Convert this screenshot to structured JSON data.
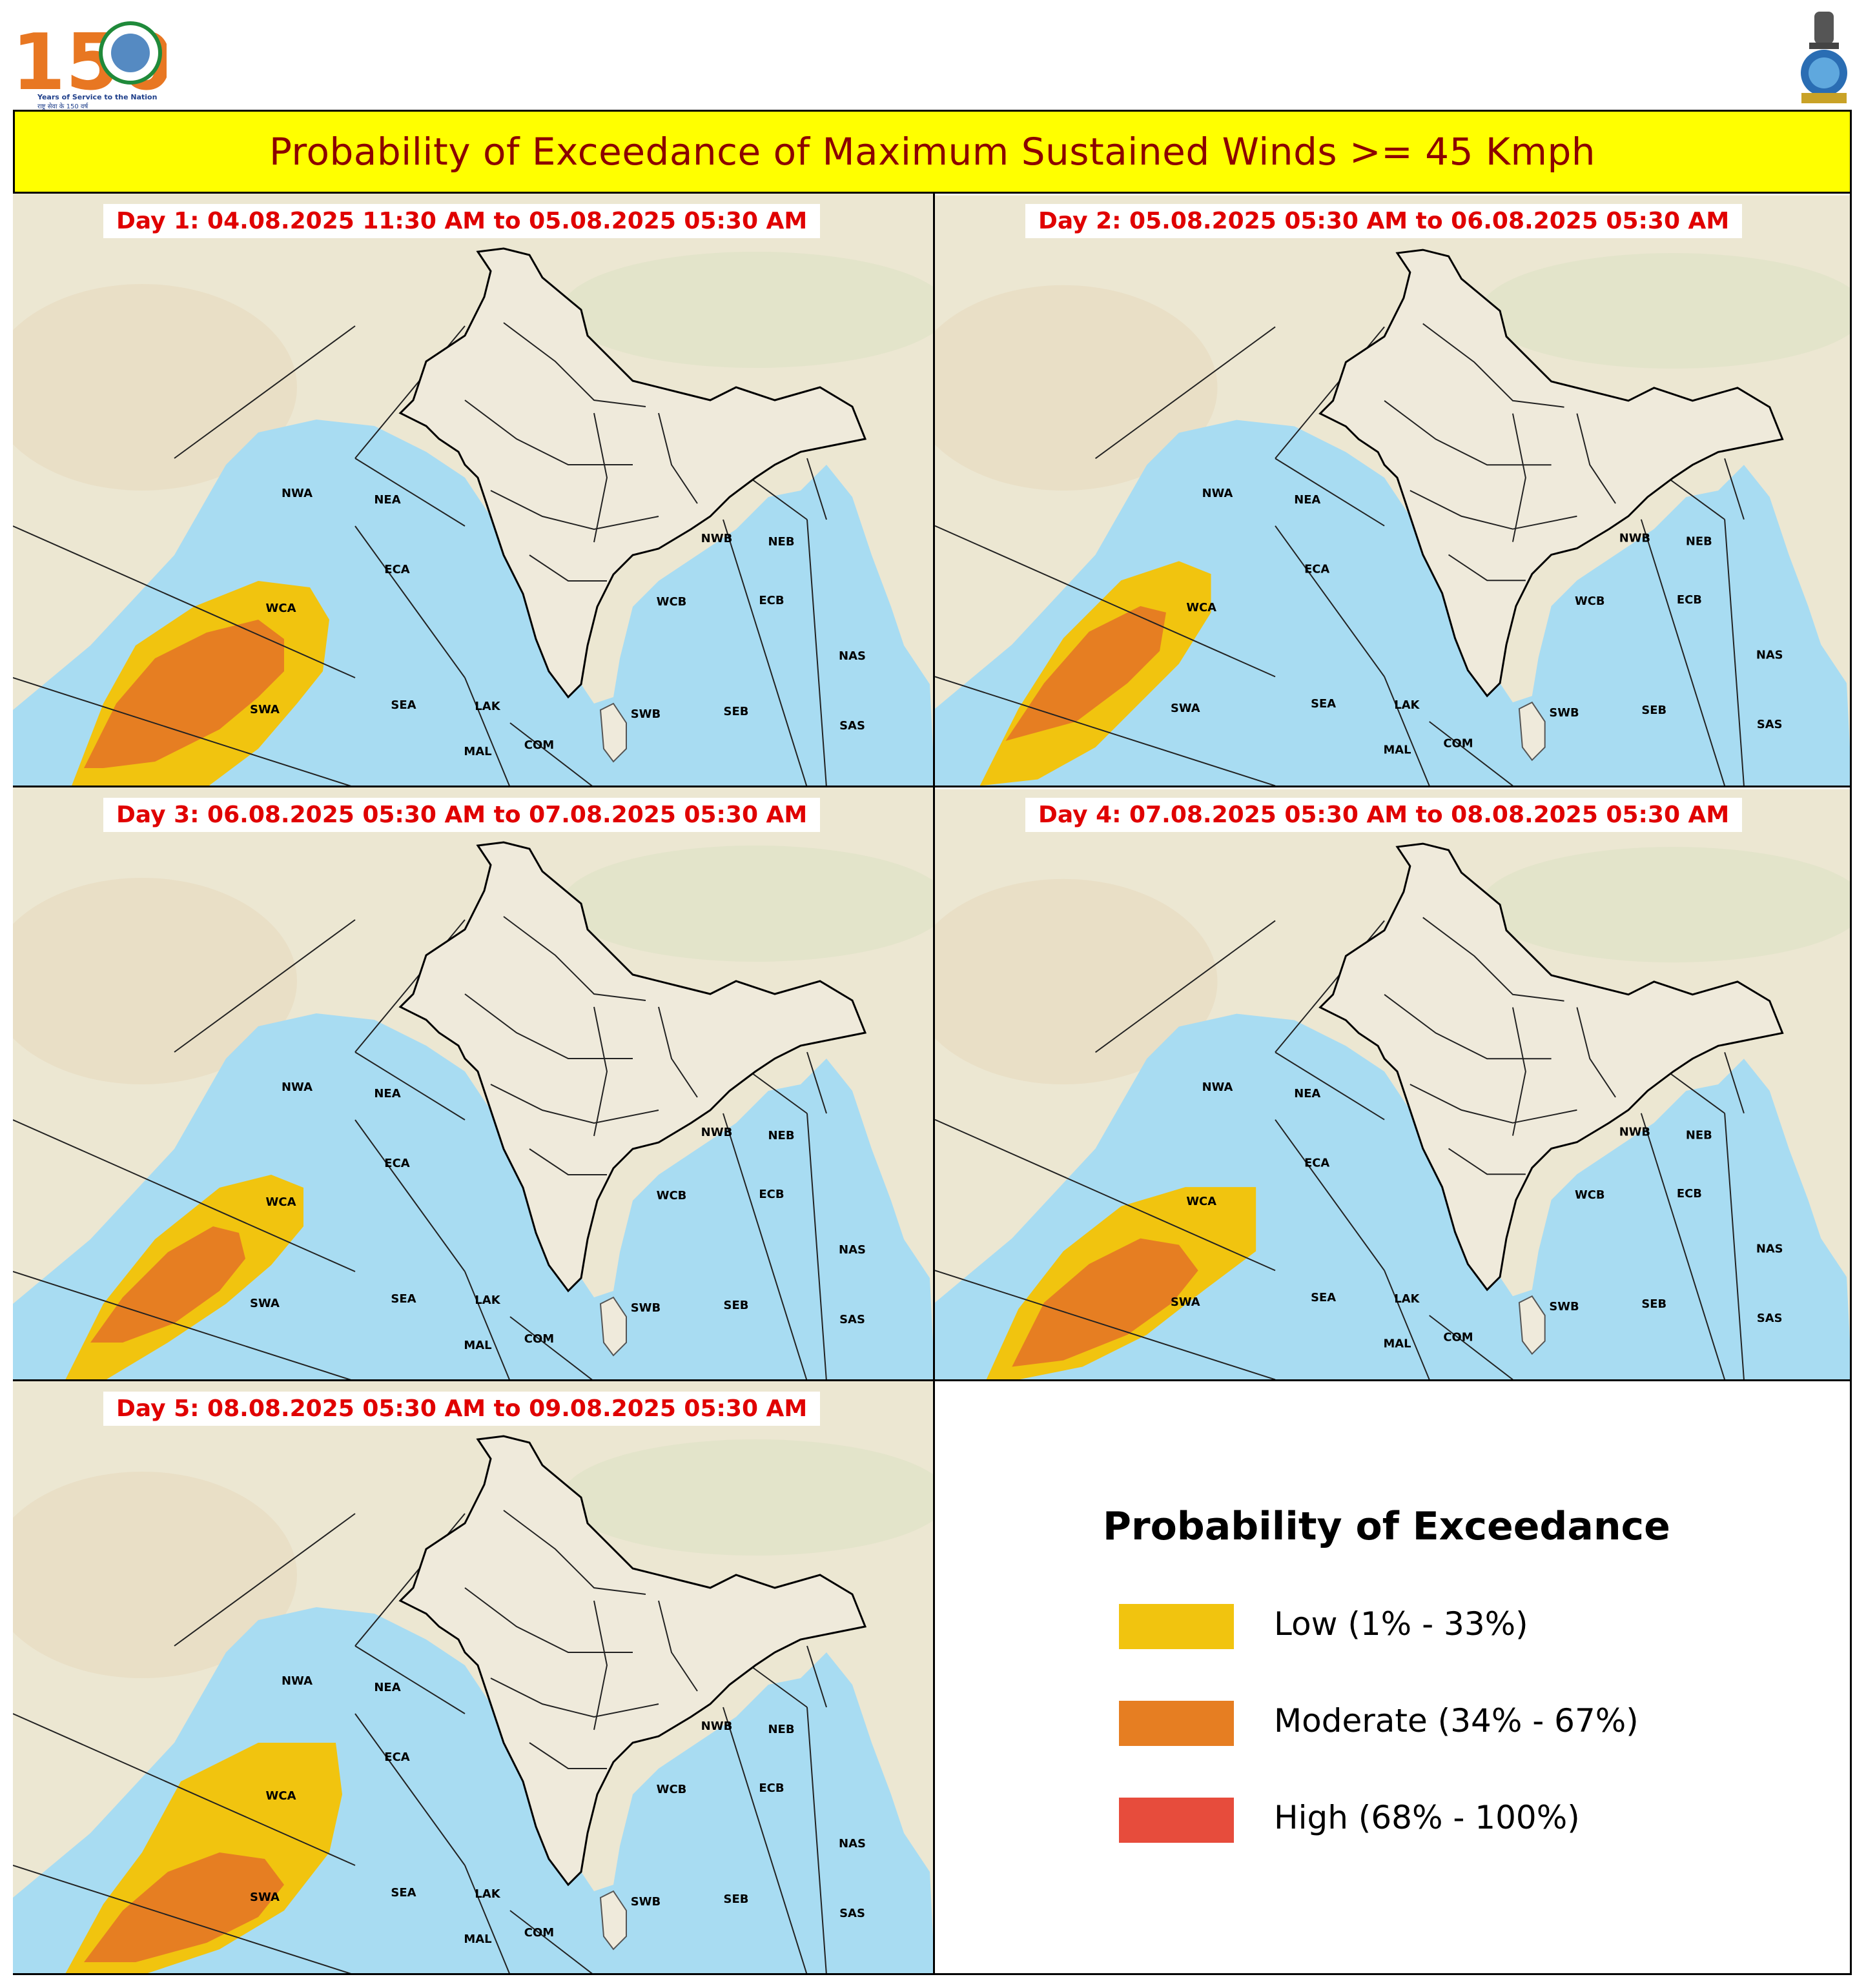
{
  "header": {
    "logo_number": "150",
    "logo_caption": "Years of Service to the Nation",
    "logo_caption_hindi": "राष्ट्र सेवा के 150 वर्ष",
    "title": "Probability of Exceedance of Maximum Sustained Winds >= 45 Kmph"
  },
  "colors": {
    "low": "#f1c40f",
    "moderate": "#e67e22",
    "high": "#e74c3c",
    "sea": "#a8dcf2",
    "land": "#ece7d2",
    "banner": "#ffff00",
    "title_text": "#8b0000",
    "day_label": "#e00000"
  },
  "map_regions": [
    "NWA",
    "NEA",
    "ECA",
    "WCA",
    "SWA",
    "SEA",
    "LAK",
    "MAL",
    "COM",
    "NWB",
    "NEB",
    "WCB",
    "ECB",
    "SWB",
    "SEB",
    "NAS",
    "SAS"
  ],
  "panels": [
    {
      "label": "Day 1: 04.08.2025 11:30 AM to 05.08.2025 05:30 AM",
      "low_level": "Low",
      "moderate_level": "Moderate"
    },
    {
      "label": "Day 2: 05.08.2025 05:30 AM to 06.08.2025 05:30 AM",
      "low_level": "Low",
      "moderate_level": "Moderate"
    },
    {
      "label": "Day 3: 06.08.2025 05:30 AM to 07.08.2025 05:30 AM",
      "low_level": "Low",
      "moderate_level": "Moderate"
    },
    {
      "label": "Day 4: 07.08.2025 05:30 AM to 08.08.2025 05:30 AM",
      "low_level": "Low",
      "moderate_level": "Moderate"
    },
    {
      "label": "Day 5: 08.08.2025 05:30 AM to 09.08.2025 05:30 AM",
      "low_level": "Low",
      "moderate_level": "Moderate"
    }
  ],
  "legend": {
    "title": "Probability of Exceedance",
    "items": [
      {
        "label": "Low (1% - 33%)",
        "color": "#f1c40f"
      },
      {
        "label": "Moderate (34% - 67%)",
        "color": "#e67e22"
      },
      {
        "label": "High (68% - 100%)",
        "color": "#e74c3c"
      }
    ]
  }
}
